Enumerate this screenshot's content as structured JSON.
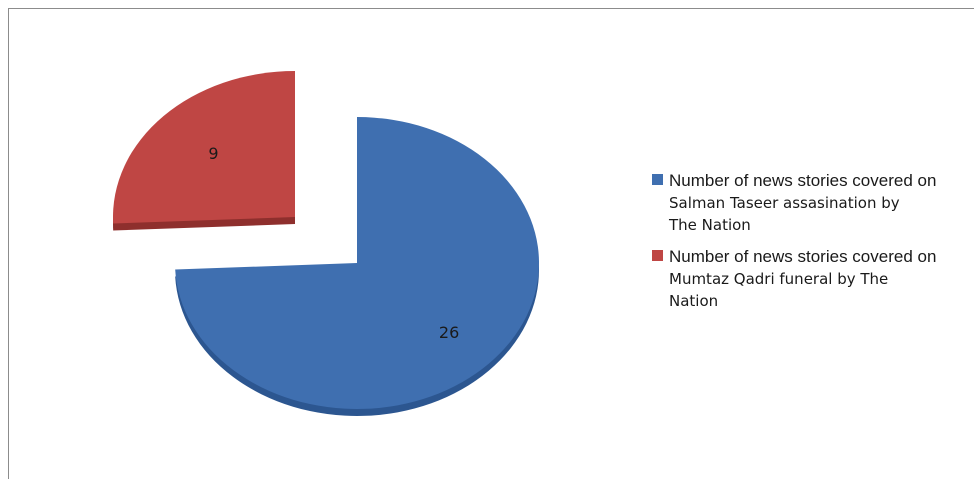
{
  "chart_data": {
    "type": "pie",
    "style": "3d-exploded",
    "slices": [
      {
        "label_line1": "Number of news stories covered on",
        "label_rest": [
          "Salman Taseer assasination by",
          "The Nation"
        ],
        "value": 26,
        "color": "#3f6fb0",
        "shade": "#2c5690"
      },
      {
        "label_line1": "Number of news stories covered on",
        "label_rest": [
          "Mumtaz Qadri funeral by The",
          "Nation"
        ],
        "value": 9,
        "color": "#bf4644",
        "shade": "#8e2f2d"
      }
    ],
    "legend_position": "right"
  }
}
